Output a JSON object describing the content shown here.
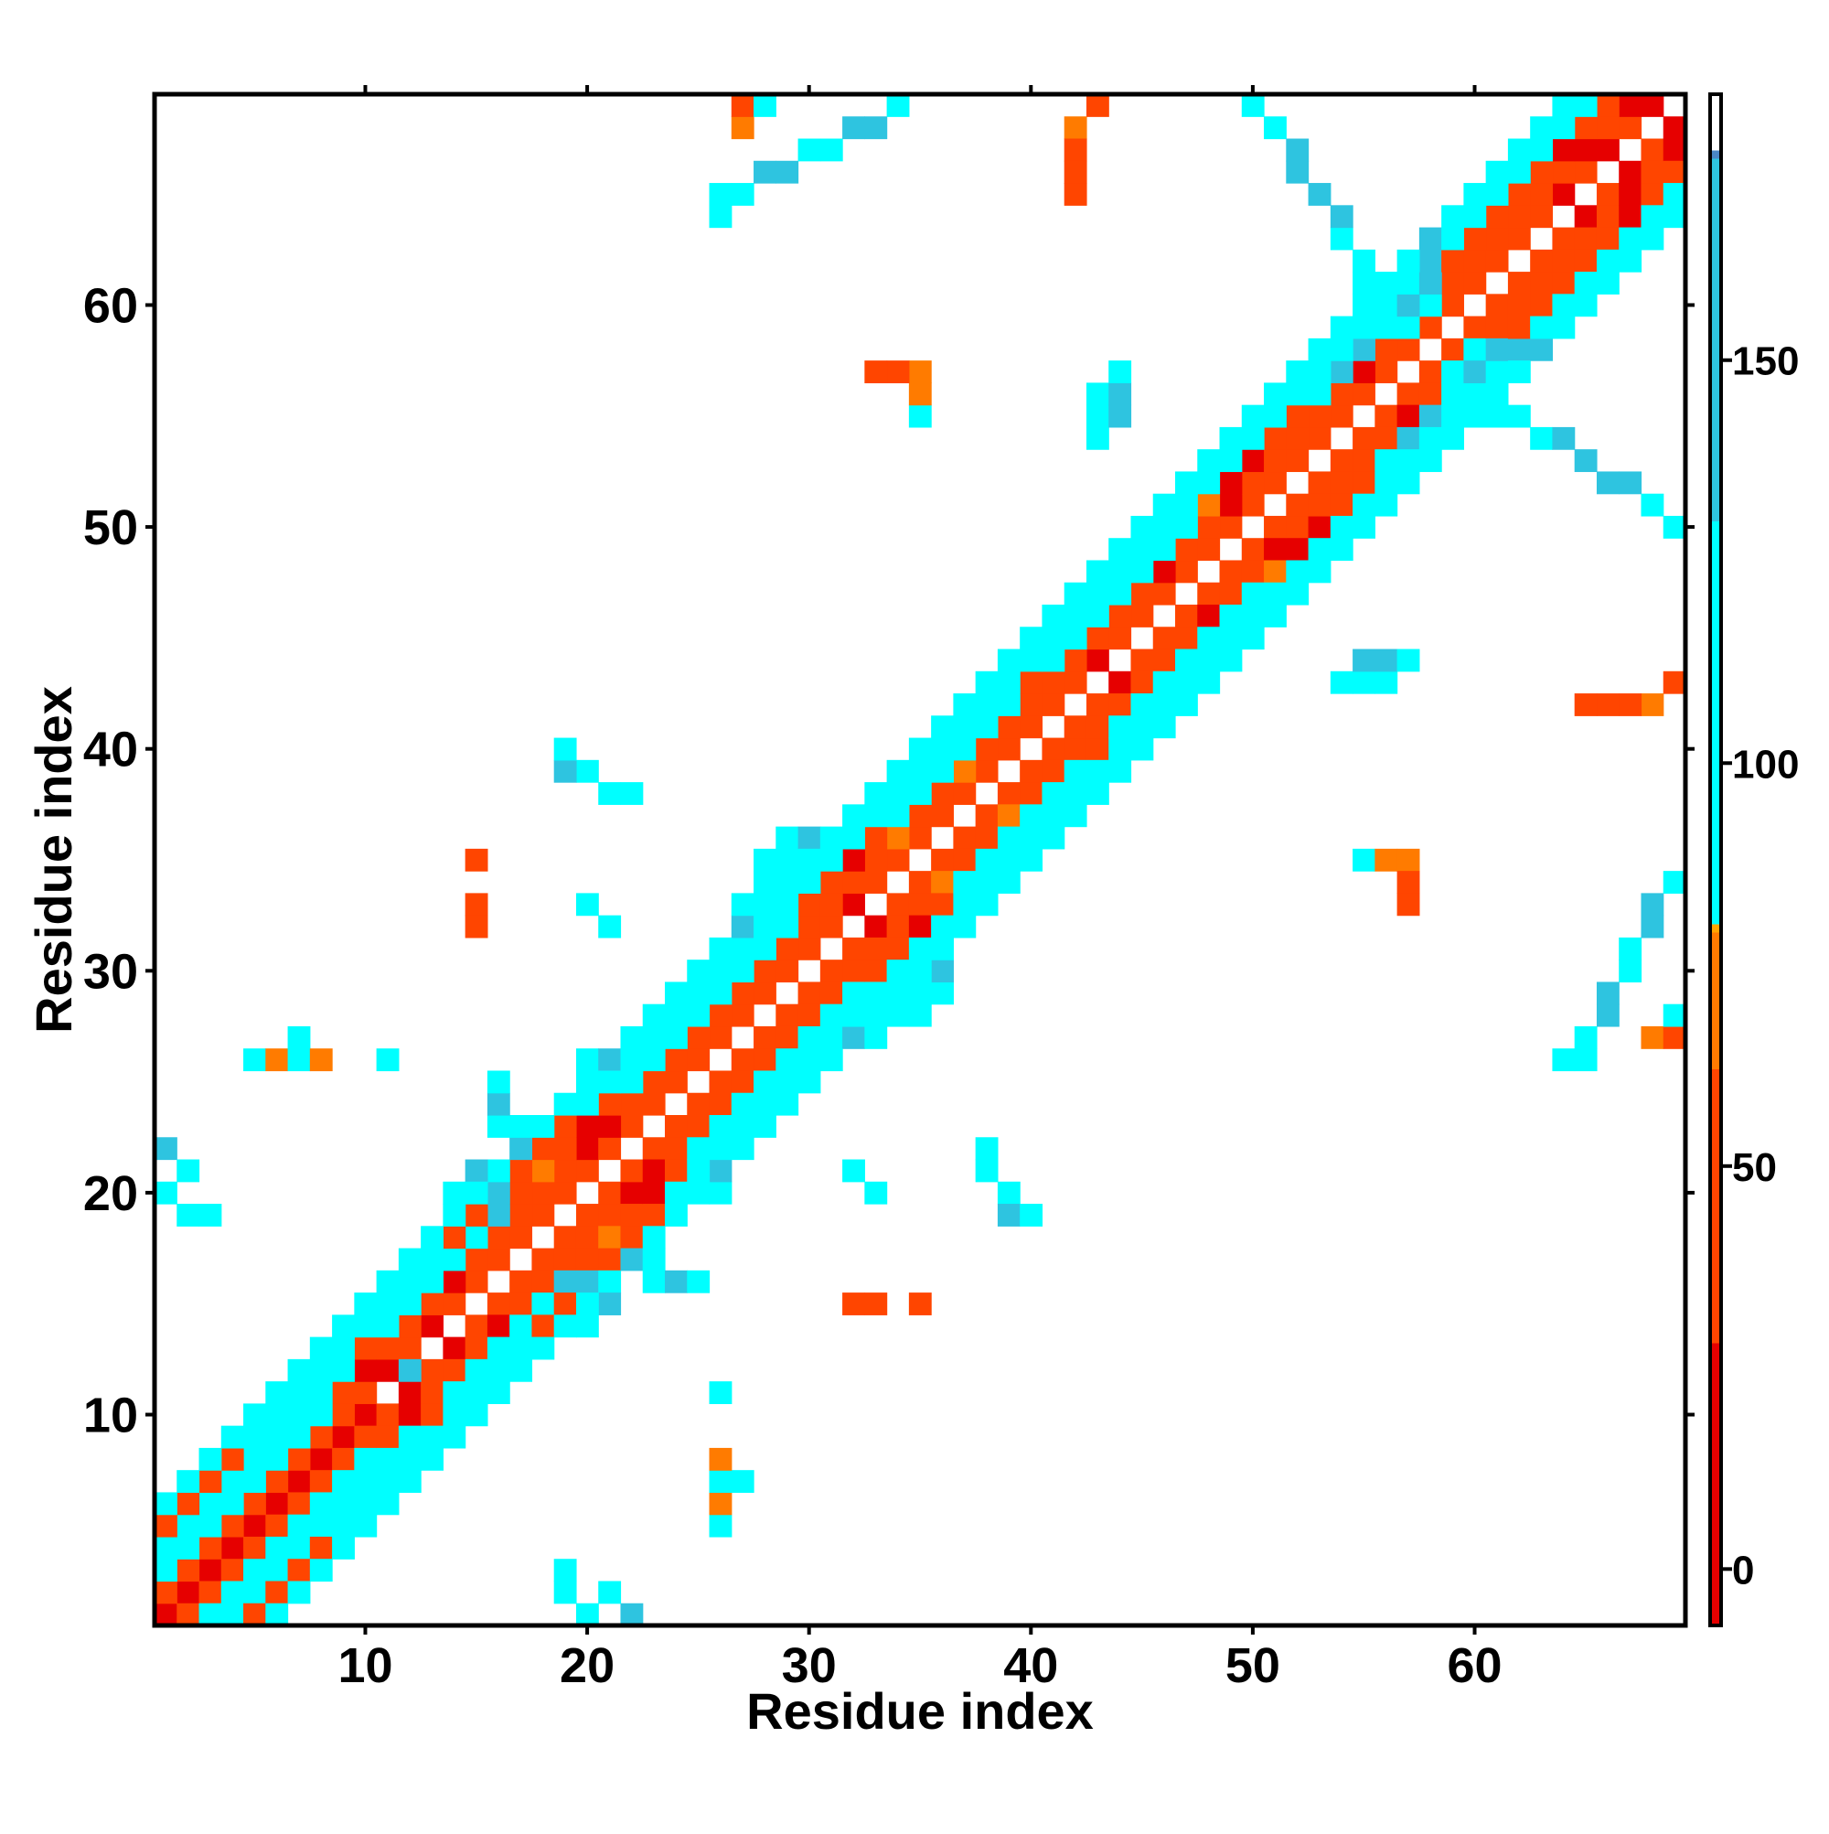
{
  "chart_data": {
    "type": "heatmap",
    "title": "",
    "xlabel": "Residue index",
    "ylabel": "Residue index",
    "xlim": [
      0.5,
      69.5
    ],
    "ylim": [
      0.5,
      69.5
    ],
    "x_ticks": [
      "10",
      "20",
      "30",
      "40",
      "50",
      "60"
    ],
    "y_ticks": [
      "10",
      "20",
      "30",
      "40",
      "50",
      "60"
    ],
    "grid": false,
    "symmetric": true,
    "colorbar": {
      "ticks": [
        "0",
        "50",
        "100",
        "150"
      ],
      "range": [
        -7,
        183
      ],
      "stops": [
        {
          "value": -7,
          "color": "#e60000"
        },
        {
          "value": 28,
          "color": "#ff4500"
        },
        {
          "value": 62,
          "color": "#ff7b00"
        },
        {
          "value": 79,
          "color": "#ffa500"
        },
        {
          "value": 80,
          "color": "#00ffff"
        },
        {
          "value": 130,
          "color": "#2ec4e0"
        },
        {
          "value": 175,
          "color": "#4a87c6"
        },
        {
          "value": 176,
          "color": "#ffffff"
        }
      ]
    },
    "bands": [
      {
        "offset": 1,
        "value": 20
      },
      {
        "offset": 2,
        "value": 45
      },
      {
        "offset": 3,
        "value": 60
      },
      {
        "offset": 4,
        "value": 95
      },
      {
        "offset": 5,
        "value": 110
      }
    ],
    "cells": [
      [
        1,
        1,
        -5
      ],
      [
        2,
        2,
        -5
      ],
      [
        3,
        3,
        -5
      ],
      [
        4,
        4,
        -5
      ],
      [
        5,
        5,
        -5
      ],
      [
        6,
        6,
        -5
      ],
      [
        7,
        7,
        -5
      ],
      [
        8,
        8,
        -5
      ],
      [
        9,
        9,
        -5
      ],
      [
        10,
        10,
        -5
      ],
      [
        1,
        2,
        50
      ],
      [
        2,
        3,
        45
      ],
      [
        3,
        4,
        55
      ],
      [
        4,
        5,
        40
      ],
      [
        5,
        6,
        48
      ],
      [
        6,
        7,
        42
      ],
      [
        7,
        8,
        50
      ],
      [
        8,
        9,
        45
      ],
      [
        9,
        10,
        40
      ],
      [
        10,
        11,
        30
      ],
      [
        1,
        3,
        115
      ],
      [
        2,
        4,
        110
      ],
      [
        3,
        5,
        120
      ],
      [
        4,
        6,
        105
      ],
      [
        5,
        7,
        115
      ],
      [
        6,
        8,
        110
      ],
      [
        7,
        9,
        120
      ],
      [
        8,
        10,
        110
      ],
      [
        9,
        11,
        45
      ],
      [
        10,
        12,
        15
      ],
      [
        1,
        4,
        105
      ],
      [
        2,
        5,
        110
      ],
      [
        3,
        6,
        100
      ],
      [
        4,
        7,
        115
      ],
      [
        5,
        8,
        110
      ],
      [
        6,
        9,
        105
      ],
      [
        7,
        10,
        110
      ],
      [
        8,
        11,
        108
      ],
      [
        9,
        12,
        110
      ],
      [
        10,
        13,
        50
      ],
      [
        1,
        5,
        50
      ],
      [
        2,
        6,
        40
      ],
      [
        3,
        7,
        45
      ],
      [
        4,
        8,
        35
      ],
      [
        5,
        9,
        110
      ],
      [
        6,
        10,
        105
      ],
      [
        7,
        11,
        110
      ],
      [
        8,
        12,
        100
      ],
      [
        9,
        13,
        110
      ],
      [
        10,
        14,
        108
      ],
      [
        1,
        6,
        110
      ],
      [
        2,
        7,
        100
      ],
      [
        3,
        8,
        105
      ],
      [
        4,
        9,
        110
      ],
      [
        5,
        10,
        100
      ],
      [
        6,
        11,
        110
      ],
      [
        7,
        12,
        105
      ],
      [
        8,
        13,
        110
      ],
      [
        11,
        12,
        15
      ],
      [
        12,
        13,
        30
      ],
      [
        13,
        14,
        20
      ],
      [
        14,
        15,
        50
      ],
      [
        15,
        16,
        40
      ],
      [
        16,
        17,
        30
      ],
      [
        17,
        18,
        50
      ],
      [
        18,
        19,
        40
      ],
      [
        19,
        20,
        50
      ],
      [
        20,
        21,
        45
      ],
      [
        11,
        13,
        50
      ],
      [
        12,
        14,
        45
      ],
      [
        13,
        15,
        40
      ],
      [
        14,
        16,
        20
      ],
      [
        15,
        17,
        45
      ],
      [
        16,
        18,
        50
      ],
      [
        17,
        19,
        35
      ],
      [
        18,
        20,
        45
      ],
      [
        19,
        21,
        50
      ],
      [
        20,
        22,
        20
      ],
      [
        11,
        14,
        110
      ],
      [
        12,
        15,
        100
      ],
      [
        13,
        16,
        110
      ],
      [
        14,
        17,
        105
      ],
      [
        15,
        18,
        110
      ],
      [
        16,
        19,
        140
      ],
      [
        17,
        20,
        50
      ],
      [
        18,
        21,
        72
      ],
      [
        19,
        22,
        45
      ],
      [
        20,
        23,
        25
      ],
      [
        11,
        15,
        108
      ],
      [
        12,
        16,
        110
      ],
      [
        13,
        17,
        95
      ],
      [
        14,
        18,
        45
      ],
      [
        15,
        19,
        50
      ],
      [
        16,
        20,
        150
      ],
      [
        17,
        21,
        45
      ],
      [
        18,
        22,
        50
      ],
      [
        19,
        23,
        45
      ],
      [
        21,
        22,
        30
      ],
      [
        22,
        23,
        45
      ],
      [
        23,
        24,
        40
      ],
      [
        24,
        25,
        50
      ],
      [
        25,
        26,
        45
      ],
      [
        26,
        27,
        55
      ],
      [
        27,
        28,
        50
      ],
      [
        28,
        29,
        45
      ],
      [
        29,
        30,
        55
      ],
      [
        30,
        31,
        50
      ],
      [
        21,
        23,
        20
      ],
      [
        22,
        24,
        50
      ],
      [
        23,
        25,
        45
      ],
      [
        24,
        26,
        40
      ],
      [
        25,
        27,
        55
      ],
      [
        26,
        28,
        50
      ],
      [
        27,
        29,
        45
      ],
      [
        28,
        30,
        55
      ],
      [
        29,
        31,
        45
      ],
      [
        30,
        32,
        50
      ],
      [
        21,
        24,
        45
      ],
      [
        22,
        25,
        95
      ],
      [
        23,
        26,
        110
      ],
      [
        24,
        27,
        85
      ],
      [
        25,
        28,
        110
      ],
      [
        26,
        29,
        120
      ],
      [
        27,
        30,
        110
      ],
      [
        28,
        31,
        85
      ],
      [
        29,
        32,
        125
      ],
      [
        30,
        33,
        45
      ],
      [
        31,
        32,
        40
      ],
      [
        32,
        33,
        20
      ],
      [
        33,
        34,
        45
      ],
      [
        34,
        35,
        40
      ],
      [
        35,
        36,
        50
      ],
      [
        36,
        37,
        45
      ],
      [
        37,
        38,
        50
      ],
      [
        38,
        39,
        40
      ],
      [
        39,
        40,
        50
      ],
      [
        40,
        41,
        45
      ],
      [
        31,
        33,
        50
      ],
      [
        32,
        34,
        45
      ],
      [
        33,
        35,
        35
      ],
      [
        34,
        36,
        72
      ],
      [
        35,
        37,
        50
      ],
      [
        36,
        38,
        45
      ],
      [
        37,
        39,
        72
      ],
      [
        38,
        40,
        50
      ],
      [
        39,
        41,
        40
      ],
      [
        40,
        42,
        50
      ],
      [
        31,
        34,
        40
      ],
      [
        32,
        35,
        20
      ],
      [
        33,
        36,
        45
      ],
      [
        34,
        37,
        110
      ],
      [
        35,
        38,
        85
      ],
      [
        36,
        39,
        110
      ],
      [
        37,
        40,
        120
      ],
      [
        38,
        41,
        100
      ],
      [
        39,
        42,
        110
      ],
      [
        40,
        43,
        45
      ],
      [
        41,
        42,
        45
      ],
      [
        42,
        43,
        40
      ],
      [
        43,
        44,
        20
      ],
      [
        44,
        45,
        50
      ],
      [
        45,
        46,
        40
      ],
      [
        46,
        47,
        45
      ],
      [
        47,
        48,
        50
      ],
      [
        48,
        49,
        35
      ],
      [
        49,
        50,
        50
      ],
      [
        50,
        51,
        45
      ],
      [
        41,
        43,
        50
      ],
      [
        42,
        44,
        45
      ],
      [
        43,
        45,
        35
      ],
      [
        44,
        46,
        40
      ],
      [
        45,
        47,
        50
      ],
      [
        46,
        48,
        15
      ],
      [
        47,
        49,
        45
      ],
      [
        48,
        50,
        50
      ],
      [
        49,
        51,
        20
      ],
      [
        50,
        52,
        45
      ],
      [
        41,
        44,
        110
      ],
      [
        42,
        45,
        100
      ],
      [
        43,
        46,
        110
      ],
      [
        44,
        47,
        85
      ],
      [
        45,
        48,
        110
      ],
      [
        46,
        49,
        100
      ],
      [
        47,
        50,
        110
      ],
      [
        48,
        51,
        72
      ],
      [
        49,
        52,
        15
      ],
      [
        50,
        53,
        20
      ],
      [
        51,
        52,
        50
      ],
      [
        52,
        53,
        45
      ],
      [
        53,
        54,
        40
      ],
      [
        54,
        55,
        50
      ],
      [
        55,
        56,
        45
      ],
      [
        56,
        57,
        40
      ],
      [
        57,
        58,
        50
      ],
      [
        58,
        59,
        45
      ],
      [
        59,
        60,
        40
      ],
      [
        60,
        61,
        50
      ],
      [
        51,
        53,
        30
      ],
      [
        52,
        54,
        45
      ],
      [
        53,
        55,
        50
      ],
      [
        54,
        56,
        45
      ],
      [
        55,
        57,
        15
      ],
      [
        56,
        58,
        50
      ],
      [
        57,
        59,
        100
      ],
      [
        58,
        60,
        110
      ],
      [
        59,
        61,
        45
      ],
      [
        60,
        62,
        50
      ],
      [
        61,
        62,
        45
      ],
      [
        62,
        63,
        30
      ],
      [
        63,
        64,
        50
      ],
      [
        64,
        65,
        20
      ],
      [
        65,
        66,
        45
      ],
      [
        66,
        67,
        15
      ],
      [
        67,
        68,
        50
      ],
      [
        68,
        69,
        10
      ],
      [
        61,
        63,
        30
      ],
      [
        62,
        64,
        45
      ],
      [
        63,
        65,
        40
      ],
      [
        64,
        66,
        50
      ],
      [
        65,
        67,
        20
      ],
      [
        66,
        68,
        45
      ],
      [
        67,
        69,
        15
      ],
      [
        60,
        63,
        50
      ],
      [
        61,
        64,
        40
      ],
      [
        62,
        65,
        45
      ],
      [
        63,
        66,
        50
      ],
      [
        64,
        67,
        20
      ],
      [
        65,
        68,
        45
      ],
      [
        66,
        69,
        50
      ],
      [
        1,
        20,
        110
      ],
      [
        2,
        19,
        120
      ],
      [
        3,
        19,
        110
      ],
      [
        1,
        22,
        140
      ],
      [
        2,
        21,
        120
      ],
      [
        5,
        26,
        110
      ],
      [
        6,
        26,
        72
      ],
      [
        7,
        27,
        110
      ],
      [
        15,
        33,
        45
      ],
      [
        15,
        35,
        45
      ],
      [
        15,
        32,
        40
      ],
      [
        20,
        33,
        110
      ],
      [
        21,
        32,
        110
      ],
      [
        20,
        26,
        110
      ],
      [
        21,
        26,
        140
      ],
      [
        26,
        7,
        120
      ],
      [
        26,
        8,
        72
      ],
      [
        26,
        11,
        120
      ],
      [
        20,
        16,
        140
      ],
      [
        21,
        16,
        120
      ],
      [
        20,
        14,
        120
      ],
      [
        21,
        15,
        150
      ],
      [
        20,
        15,
        110
      ],
      [
        12,
        11,
        110
      ],
      [
        12,
        12,
        140
      ],
      [
        12,
        13,
        120
      ],
      [
        11,
        12,
        110
      ],
      [
        11,
        13,
        110
      ],
      [
        11,
        14,
        120
      ],
      [
        7,
        27,
        110
      ],
      [
        7,
        26,
        120
      ],
      [
        8,
        26,
        72
      ],
      [
        22,
        38,
        120
      ],
      [
        21,
        38,
        110
      ],
      [
        20,
        39,
        120
      ],
      [
        19,
        39,
        140
      ],
      [
        19,
        40,
        110
      ],
      [
        31,
        27,
        110
      ],
      [
        32,
        27,
        140
      ],
      [
        33,
        27,
        120
      ],
      [
        34,
        28,
        110
      ],
      [
        35,
        28,
        85
      ],
      [
        36,
        29,
        110
      ],
      [
        35,
        29,
        120
      ],
      [
        36,
        30,
        130
      ],
      [
        36,
        31,
        110
      ],
      [
        26,
        64,
        110
      ],
      [
        26,
        65,
        120
      ],
      [
        27,
        65,
        110
      ],
      [
        28,
        66,
        150
      ],
      [
        29,
        66,
        140
      ],
      [
        30,
        67,
        120
      ],
      [
        31,
        67,
        110
      ],
      [
        32,
        68,
        140
      ],
      [
        33,
        68,
        130
      ],
      [
        34,
        69,
        120
      ],
      [
        27,
        68,
        72
      ],
      [
        27,
        69,
        45
      ],
      [
        28,
        69,
        110
      ],
      [
        19,
        21,
        110
      ],
      [
        19,
        22,
        140
      ],
      [
        18,
        23,
        120
      ],
      [
        18,
        22,
        130
      ],
      [
        18,
        21,
        110
      ],
      [
        17,
        22,
        140
      ],
      [
        17,
        23,
        120
      ],
      [
        16,
        23,
        110
      ],
      [
        16,
        24,
        130
      ],
      [
        16,
        25,
        110
      ],
      [
        43,
        69,
        60
      ],
      [
        42,
        68,
        70
      ],
      [
        42,
        67,
        50
      ],
      [
        42,
        66,
        40
      ],
      [
        42,
        65,
        45
      ],
      [
        43,
        56,
        110
      ],
      [
        43,
        55,
        120
      ],
      [
        43,
        54,
        110
      ],
      [
        44,
        55,
        130
      ],
      [
        44,
        56,
        140
      ],
      [
        44,
        57,
        110
      ],
      [
        53,
        56,
        110
      ],
      [
        54,
        57,
        130
      ],
      [
        55,
        58,
        140
      ],
      [
        56,
        59,
        120
      ],
      [
        56,
        60,
        110
      ],
      [
        57,
        60,
        130
      ],
      [
        57,
        61,
        110
      ],
      [
        58,
        61,
        150
      ],
      [
        58,
        62,
        140
      ],
      [
        58,
        63,
        150
      ],
      [
        61,
        55,
        120
      ],
      [
        62,
        55,
        110
      ],
      [
        63,
        54,
        120
      ],
      [
        64,
        54,
        150
      ],
      [
        65,
        53,
        150
      ],
      [
        66,
        52,
        150
      ],
      [
        67,
        52,
        130
      ],
      [
        68,
        51,
        120
      ],
      [
        69,
        50,
        110
      ],
      [
        35,
        55,
        85
      ],
      [
        35,
        56,
        72
      ],
      [
        35,
        57,
        72
      ],
      [
        34,
        57,
        45
      ],
      [
        33,
        57,
        50
      ]
    ]
  }
}
